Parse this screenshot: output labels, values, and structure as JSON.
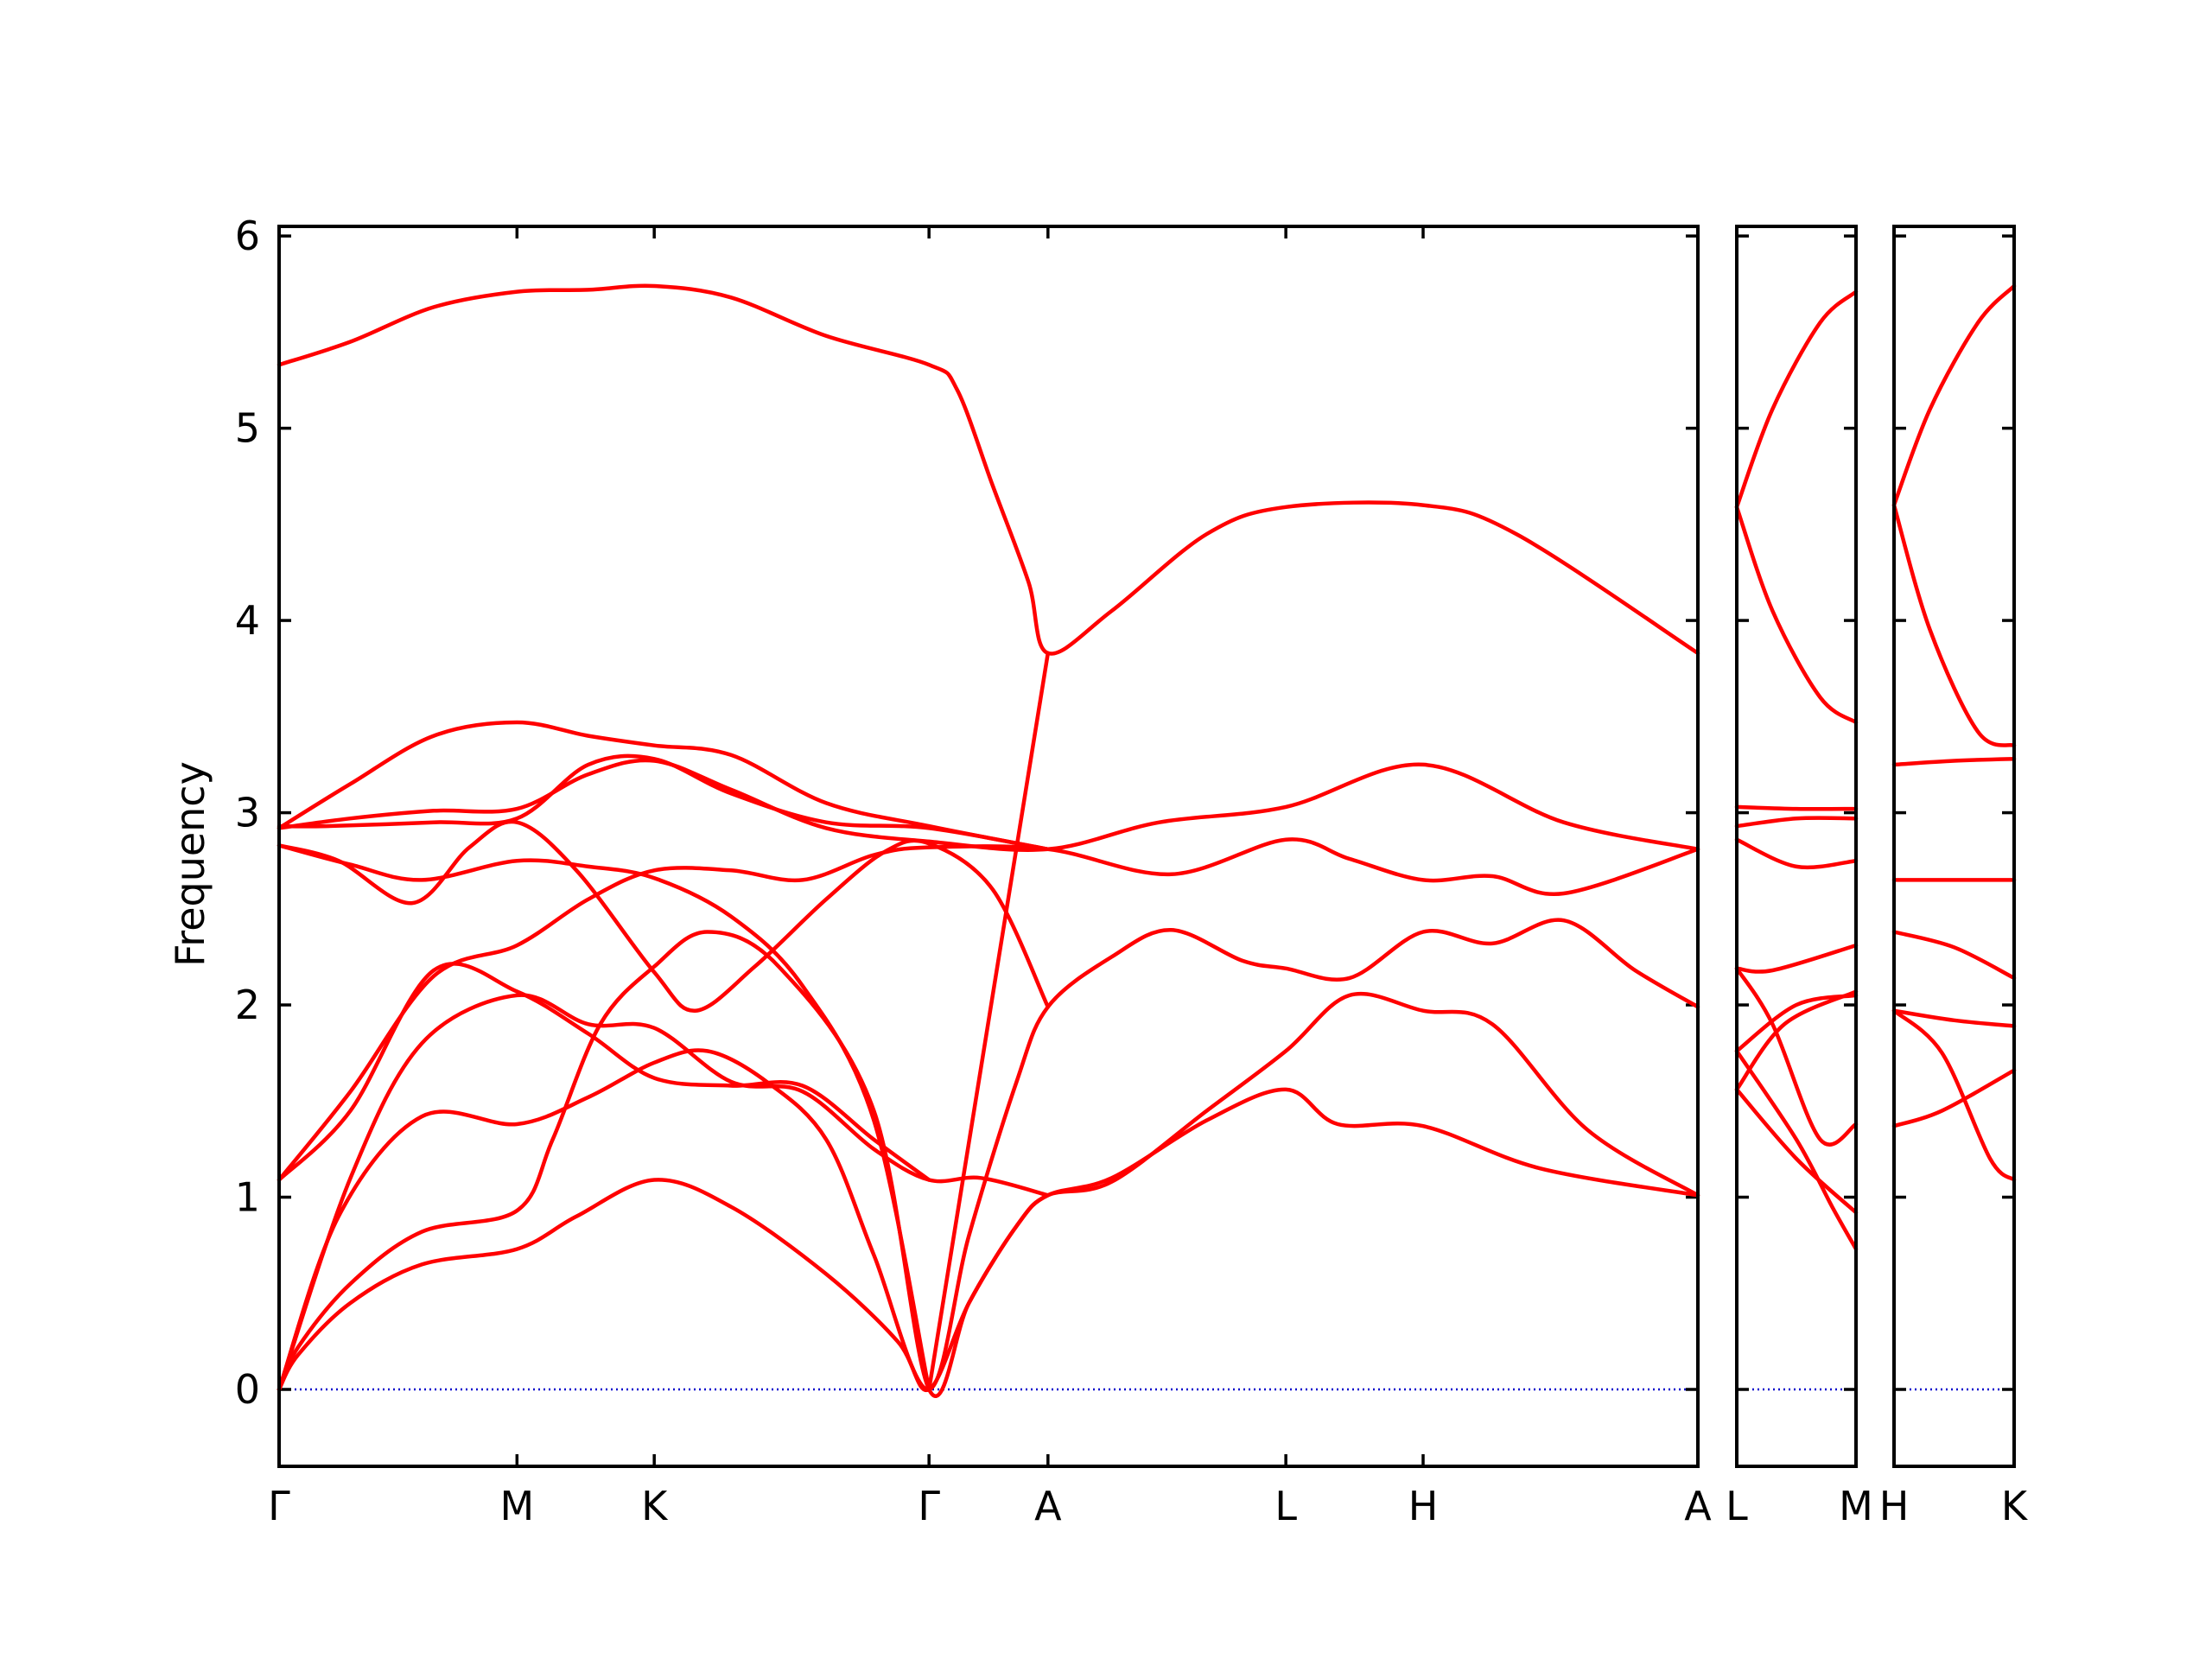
{
  "chart_data": {
    "type": "line",
    "ylabel": "Frequency",
    "ylim": [
      -0.4,
      6.05
    ],
    "yticks": [
      0,
      1,
      2,
      3,
      4,
      5,
      6
    ],
    "colors": {
      "bands": "#ff0000",
      "zero_line": "#0000cc",
      "frame": "#000000"
    },
    "panels": [
      {
        "name": "main",
        "labels": [
          "Γ",
          "M",
          "K",
          "Γ",
          "A",
          "L",
          "H",
          "A"
        ],
        "x": [
          0,
          1,
          1.577,
          2.732,
          3.232,
          4.232,
          4.809,
          5.964
        ],
        "bands": [
          [
            [
              0,
              0
            ],
            [
              0.08,
              0.18
            ],
            [
              0.3,
              0.45
            ],
            [
              0.6,
              0.65
            ],
            [
              1,
              0.73
            ],
            [
              1.25,
              0.9
            ],
            [
              1.577,
              1.09
            ],
            [
              1.9,
              0.95
            ],
            [
              2.3,
              0.6
            ],
            [
              2.6,
              0.25
            ],
            [
              2.732,
              0
            ],
            [
              2.9,
              0.45
            ],
            [
              3.1,
              0.85
            ],
            [
              3.232,
              1.01
            ],
            [
              3.5,
              1.1
            ],
            [
              3.9,
              1.4
            ],
            [
              4.232,
              1.56
            ],
            [
              4.45,
              1.38
            ],
            [
              4.809,
              1.37
            ],
            [
              5.3,
              1.15
            ],
            [
              5.964,
              1.01
            ]
          ],
          [
            [
              0,
              0
            ],
            [
              0.08,
              0.22
            ],
            [
              0.3,
              0.55
            ],
            [
              0.6,
              0.82
            ],
            [
              1,
              0.93
            ],
            [
              1.15,
              1.3
            ],
            [
              1.35,
              1.9
            ],
            [
              1.577,
              2.2
            ],
            [
              1.8,
              2.38
            ],
            [
              2.1,
              2.2
            ],
            [
              2.5,
              1.45
            ],
            [
              2.732,
              0
            ],
            [
              2.9,
              0.45
            ],
            [
              3.1,
              0.85
            ],
            [
              3.232,
              1.01
            ],
            [
              3.5,
              1.08
            ],
            [
              3.9,
              1.45
            ],
            [
              4.232,
              1.76
            ],
            [
              4.5,
              2.05
            ],
            [
              4.809,
              1.97
            ],
            [
              5.1,
              1.9
            ],
            [
              5.5,
              1.35
            ],
            [
              5.964,
              1.01
            ]
          ],
          [
            [
              0,
              0
            ],
            [
              0.25,
              0.9
            ],
            [
              0.6,
              1.42
            ],
            [
              1,
              1.38
            ],
            [
              1.3,
              1.52
            ],
            [
              1.577,
              1.7
            ],
            [
              1.8,
              1.76
            ],
            [
              2.05,
              1.6
            ],
            [
              2.3,
              1.3
            ],
            [
              2.5,
              0.7
            ],
            [
              2.732,
              0
            ],
            [
              2.9,
              0.8
            ],
            [
              3.1,
              1.6
            ],
            [
              3.232,
              1.99
            ],
            [
              3.5,
              2.25
            ],
            [
              3.75,
              2.39
            ],
            [
              4.05,
              2.23
            ],
            [
              4.232,
              2.19
            ],
            [
              4.5,
              2.14
            ],
            [
              4.809,
              2.38
            ],
            [
              5.1,
              2.32
            ],
            [
              5.4,
              2.44
            ],
            [
              5.7,
              2.18
            ],
            [
              5.964,
              1.99
            ]
          ],
          [
            [
              0,
              0
            ],
            [
              0.3,
              1.1
            ],
            [
              0.6,
              1.8
            ],
            [
              1,
              2.05
            ],
            [
              1.3,
              1.9
            ],
            [
              1.577,
              1.88
            ],
            [
              1.9,
              1.6
            ],
            [
              2.2,
              1.55
            ],
            [
              2.5,
              1.25
            ],
            [
              2.732,
              1.09
            ],
            [
              2.95,
              1.1
            ],
            [
              3.232,
              1.01
            ]
          ],
          [
            [
              0,
              1.09
            ],
            [
              0.3,
              1.45
            ],
            [
              0.65,
              2.18
            ],
            [
              1,
              2.07
            ],
            [
              1.3,
              1.85
            ],
            [
              1.577,
              1.62
            ],
            [
              1.9,
              1.58
            ],
            [
              2.2,
              1.58
            ],
            [
              2.5,
              1.3
            ],
            [
              2.732,
              1.09
            ]
          ],
          [
            [
              0,
              1.09
            ],
            [
              0.3,
              1.55
            ],
            [
              0.65,
              2.15
            ],
            [
              1,
              2.31
            ],
            [
              1.3,
              2.55
            ],
            [
              1.577,
              2.7
            ],
            [
              1.9,
              2.7
            ],
            [
              2.2,
              2.65
            ],
            [
              2.5,
              2.78
            ],
            [
              2.732,
              2.82
            ],
            [
              3.232,
              2.81
            ],
            [
              3.75,
              2.68
            ],
            [
              4.232,
              2.86
            ],
            [
              4.5,
              2.76
            ],
            [
              4.809,
              2.65
            ],
            [
              5.1,
              2.67
            ],
            [
              5.4,
              2.58
            ],
            [
              5.964,
              2.81
            ]
          ],
          [
            [
              0,
              2.83
            ],
            [
              0.3,
              2.73
            ],
            [
              0.6,
              2.65
            ],
            [
              1,
              2.75
            ],
            [
              1.3,
              2.72
            ],
            [
              1.577,
              2.66
            ],
            [
              1.9,
              2.46
            ],
            [
              2.2,
              2.1
            ],
            [
              2.5,
              1.4
            ],
            [
              2.732,
              0
            ]
          ],
          [
            [
              0,
              2.83
            ],
            [
              0.25,
              2.75
            ],
            [
              0.56,
              2.53
            ],
            [
              0.8,
              2.82
            ],
            [
              1,
              2.95
            ],
            [
              1.25,
              2.7
            ],
            [
              1.577,
              2.17
            ],
            [
              1.75,
              1.97
            ],
            [
              2.0,
              2.2
            ],
            [
              2.3,
              2.55
            ],
            [
              2.55,
              2.8
            ],
            [
              2.732,
              2.84
            ],
            [
              3.0,
              2.6
            ],
            [
              3.232,
              1.99
            ]
          ],
          [
            [
              0,
              2.92
            ],
            [
              0.3,
              2.97
            ],
            [
              0.65,
              3.01
            ],
            [
              1,
              3.02
            ],
            [
              1.3,
              3.2
            ],
            [
              1.577,
              3.27
            ],
            [
              1.9,
              3.12
            ],
            [
              2.3,
              2.92
            ],
            [
              2.732,
              2.85
            ],
            [
              3.232,
              2.81
            ],
            [
              3.7,
              2.95
            ],
            [
              4.232,
              3.03
            ],
            [
              4.809,
              3.25
            ],
            [
              5.4,
              2.95
            ],
            [
              5.964,
              2.81
            ]
          ],
          [
            [
              0,
              2.93
            ],
            [
              0.2,
              2.93
            ],
            [
              0.65,
              2.95
            ],
            [
              1,
              2.97
            ],
            [
              1.3,
              3.25
            ],
            [
              1.577,
              3.28
            ],
            [
              1.9,
              3.1
            ],
            [
              2.3,
              2.95
            ],
            [
              2.732,
              2.92
            ],
            [
              3.232,
              2.81
            ]
          ],
          [
            [
              0,
              2.92
            ],
            [
              0.3,
              3.15
            ],
            [
              0.65,
              3.4
            ],
            [
              1,
              3.47
            ],
            [
              1.3,
              3.4
            ],
            [
              1.577,
              3.35
            ],
            [
              1.9,
              3.3
            ],
            [
              2.3,
              3.05
            ],
            [
              2.732,
              2.93
            ],
            [
              3.232,
              2.81
            ]
          ],
          [
            [
              0,
              5.33
            ],
            [
              0.3,
              5.45
            ],
            [
              0.65,
              5.63
            ],
            [
              1,
              5.71
            ],
            [
              1.3,
              5.72
            ],
            [
              1.577,
              5.74
            ],
            [
              1.9,
              5.68
            ],
            [
              2.3,
              5.48
            ],
            [
              2.732,
              5.33
            ],
            [
              2.85,
              5.2
            ],
            [
              3.0,
              4.7
            ],
            [
              3.15,
              4.2
            ],
            [
              3.232,
              3.83
            ],
            [
              3.5,
              4.05
            ],
            [
              3.9,
              4.45
            ],
            [
              4.232,
              4.59
            ],
            [
              4.809,
              4.6
            ],
            [
              5.2,
              4.45
            ],
            [
              5.964,
              3.83
            ]
          ],
          [
            [
              2.732,
              0
            ],
            [
              3.232,
              3.83
            ]
          ]
        ]
      },
      {
        "name": "L-M",
        "labels": [
          "L",
          "M"
        ],
        "x": [
          0,
          1
        ],
        "bands": [
          [
            [
              0,
              4.59
            ],
            [
              0.3,
              5.1
            ],
            [
              0.7,
              5.55
            ],
            [
              1,
              5.71
            ]
          ],
          [
            [
              0,
              4.59
            ],
            [
              0.3,
              4.05
            ],
            [
              0.7,
              3.6
            ],
            [
              1,
              3.47
            ]
          ],
          [
            [
              0,
              3.03
            ],
            [
              0.5,
              3.02
            ],
            [
              1,
              3.02
            ]
          ],
          [
            [
              0,
              2.93
            ],
            [
              0.5,
              2.97
            ],
            [
              1,
              2.97
            ]
          ],
          [
            [
              0,
              2.86
            ],
            [
              0.5,
              2.72
            ],
            [
              1,
              2.75
            ]
          ],
          [
            [
              0,
              2.19
            ],
            [
              0.3,
              2.18
            ],
            [
              1,
              2.31
            ]
          ],
          [
            [
              0,
              2.19
            ],
            [
              0.3,
              1.9
            ],
            [
              0.7,
              1.3
            ],
            [
              1,
              1.38
            ]
          ],
          [
            [
              0,
              1.76
            ],
            [
              0.5,
              2.0
            ],
            [
              1,
              2.05
            ]
          ],
          [
            [
              0,
              1.56
            ],
            [
              0.4,
              1.9
            ],
            [
              1,
              2.07
            ]
          ],
          [
            [
              0,
              1.56
            ],
            [
              0.5,
              1.2
            ],
            [
              1,
              0.92
            ]
          ],
          [
            [
              0,
              1.76
            ],
            [
              0.5,
              1.3
            ],
            [
              0.8,
              0.95
            ],
            [
              1,
              0.73
            ]
          ]
        ]
      },
      {
        "name": "H-K",
        "labels": [
          "H",
          "K"
        ],
        "x": [
          0,
          1
        ],
        "bands": [
          [
            [
              0,
              4.6
            ],
            [
              0.3,
              5.1
            ],
            [
              0.7,
              5.55
            ],
            [
              1,
              5.74
            ]
          ],
          [
            [
              0,
              4.6
            ],
            [
              0.3,
              3.95
            ],
            [
              0.7,
              3.42
            ],
            [
              1,
              3.35
            ]
          ],
          [
            [
              0,
              3.25
            ],
            [
              0.5,
              3.27
            ],
            [
              1,
              3.28
            ]
          ],
          [
            [
              0,
              2.65
            ],
            [
              0.5,
              2.65
            ],
            [
              1,
              2.65
            ]
          ],
          [
            [
              0,
              2.38
            ],
            [
              0.5,
              2.3
            ],
            [
              1,
              2.14
            ]
          ],
          [
            [
              0,
              1.97
            ],
            [
              0.5,
              1.92
            ],
            [
              1,
              1.89
            ]
          ],
          [
            [
              0,
              1.97
            ],
            [
              0.4,
              1.75
            ],
            [
              0.8,
              1.2
            ],
            [
              1,
              1.09
            ]
          ],
          [
            [
              0,
              1.37
            ],
            [
              0.4,
              1.45
            ],
            [
              1,
              1.66
            ]
          ]
        ]
      }
    ]
  }
}
